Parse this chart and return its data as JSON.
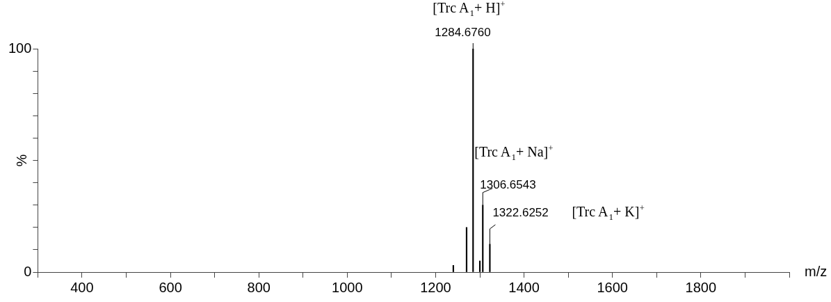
{
  "chart_data": {
    "type": "bar",
    "xlabel": "m/z",
    "ylabel": "%",
    "series": [
      {
        "color": "#000000",
        "x": [
          1240,
          1270,
          1284.676,
          1300,
          1306.6543,
          1322.6252
        ],
        "values": [
          3,
          20,
          100,
          5,
          30,
          12.5
        ]
      }
    ],
    "xlim": [
      300,
      2000
    ],
    "xticks": [
      {
        "value": 300,
        "label": null
      },
      400,
      {
        "value": 500,
        "label": null
      },
      600,
      {
        "value": 700,
        "label": null
      },
      800,
      {
        "value": 900,
        "label": null
      },
      1000,
      {
        "value": 1100,
        "label": null
      },
      1200,
      {
        "value": 1300,
        "label": null
      },
      1400,
      {
        "value": 1500,
        "label": null
      },
      1600,
      {
        "value": 1700,
        "label": null
      },
      1800,
      {
        "value": 1900,
        "label": null
      },
      {
        "value": 2000,
        "label": null
      }
    ],
    "ylim": [
      0,
      100
    ],
    "yticks": [
      0,
      {
        "value": 10,
        "label": null
      },
      {
        "value": 20,
        "label": null
      },
      {
        "value": 30,
        "label": null
      },
      {
        "value": 40,
        "label": null
      },
      {
        "value": 50,
        "label": null
      },
      {
        "value": 60,
        "label": null
      },
      {
        "value": 70,
        "label": null
      },
      {
        "value": 80,
        "label": null
      },
      {
        "value": 90,
        "label": null
      },
      100
    ],
    "grid": false,
    "legend": false,
    "annotations": [
      "[Trc A$_{1}$+ H]$^{+}$",
      {
        "text": "1284.6760",
        "x": 1284.676,
        "y": 100
      },
      "[Trc A$_{1}$+ Na]$^{+}$",
      {
        "text": "1306.6543",
        "x": 1306.6543,
        "y": 30
      },
      "[Trc A$_{1}$+ K]$^{+}$",
      {
        "text": "1322.6252",
        "x": 1322.6252,
        "y": 12.5
      }
    ]
  }
}
